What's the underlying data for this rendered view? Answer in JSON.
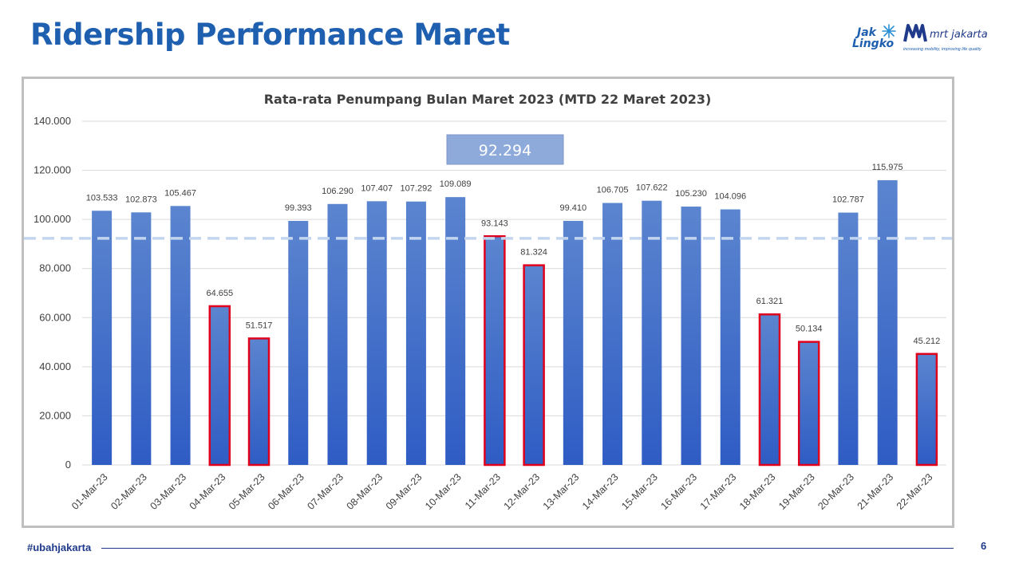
{
  "slide": {
    "title": "Ridership Performance Maret",
    "logo_jak_line1": "Jak",
    "logo_jak_line2": "Lingko",
    "logo_mrt_text": "mrt jakarta",
    "logo_mrt_tagline": "increasing mobility, improving life quality",
    "footer_tag": "#ubahjakarta",
    "page_number": "6"
  },
  "colors": {
    "title": "#1f5fb0",
    "bar_top": "#5b85cf",
    "bar_bottom": "#2f5cc4",
    "highlight_border": "#e0001b",
    "average_line": "#c3d5ee",
    "average_box": "#8eaadb"
  },
  "chart_data": {
    "type": "bar",
    "title": "Rata-rata Penumpang Bulan Maret 2023 (MTD 22 Maret 2023)",
    "xlabel": "",
    "ylabel": "",
    "ylim": [
      0,
      140000
    ],
    "yticks": [
      0,
      20000,
      40000,
      60000,
      80000,
      100000,
      120000,
      140000
    ],
    "ytick_labels": [
      "0",
      "20.000",
      "40.000",
      "60.000",
      "80.000",
      "100.000",
      "120.000",
      "140.000"
    ],
    "grid": true,
    "average": {
      "value": 92294,
      "label": "92.294"
    },
    "categories": [
      "01-Mar-23",
      "02-Mar-23",
      "03-Mar-23",
      "04-Mar-23",
      "05-Mar-23",
      "06-Mar-23",
      "07-Mar-23",
      "08-Mar-23",
      "09-Mar-23",
      "10-Mar-23",
      "11-Mar-23",
      "12-Mar-23",
      "13-Mar-23",
      "14-Mar-23",
      "15-Mar-23",
      "16-Mar-23",
      "17-Mar-23",
      "18-Mar-23",
      "19-Mar-23",
      "20-Mar-23",
      "21-Mar-23",
      "22-Mar-23"
    ],
    "values": [
      103533,
      102873,
      105467,
      64655,
      51517,
      99393,
      106290,
      107407,
      107292,
      109089,
      93143,
      81324,
      99410,
      106705,
      107622,
      105230,
      104096,
      61321,
      50134,
      102787,
      115975,
      45212
    ],
    "value_labels": [
      "103.533",
      "102.873",
      "105.467",
      "64.655",
      "51.517",
      "99.393",
      "106.290",
      "107.407",
      "107.292",
      "109.089",
      "93.143",
      "81.324",
      "99.410",
      "106.705",
      "107.622",
      "105.230",
      "104.096",
      "61.321",
      "50.134",
      "102.787",
      "115.975",
      "45.212"
    ],
    "highlighted": [
      "04-Mar-23",
      "05-Mar-23",
      "11-Mar-23",
      "12-Mar-23",
      "18-Mar-23",
      "19-Mar-23",
      "22-Mar-23"
    ]
  }
}
